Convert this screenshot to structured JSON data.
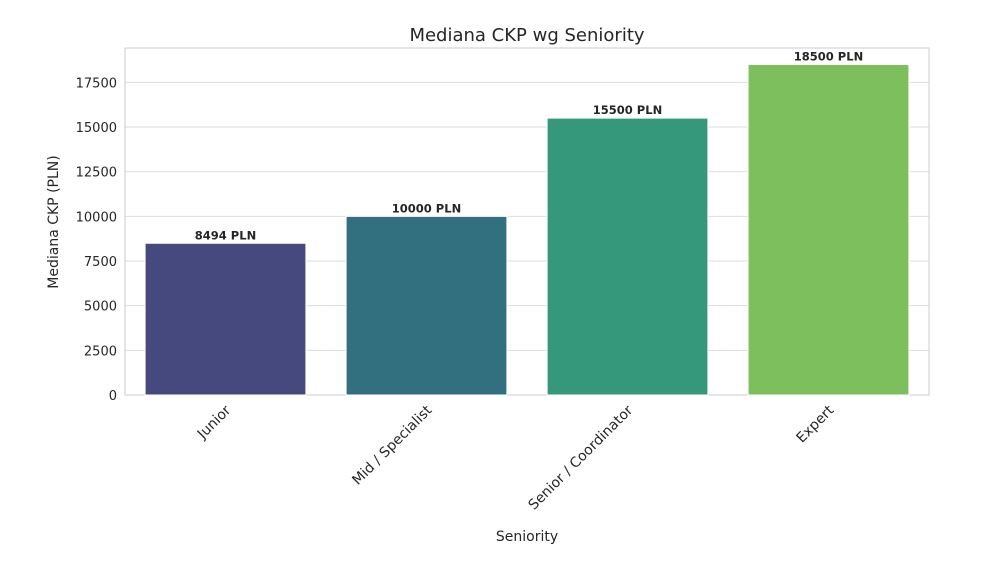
{
  "chart_data": {
    "type": "bar",
    "title": "Mediana CKP wg Seniority",
    "xlabel": "Seniority",
    "ylabel": "Mediana CKP (PLN)",
    "categories": [
      "Junior",
      "Mid / Specialist",
      "Senior / Coordinator",
      "Expert"
    ],
    "values": [
      8494,
      10000,
      15500,
      18500
    ],
    "data_labels": [
      "8494 PLN",
      "10000 PLN",
      "15500 PLN",
      "18500 PLN"
    ],
    "colors": [
      "#46497e",
      "#32707f",
      "#35987a",
      "#7cbf5c"
    ],
    "yticks": [
      0,
      2500,
      5000,
      7500,
      10000,
      12500,
      15000,
      17500
    ],
    "ylim": [
      0,
      19425
    ],
    "grid": true,
    "legend": "none"
  }
}
